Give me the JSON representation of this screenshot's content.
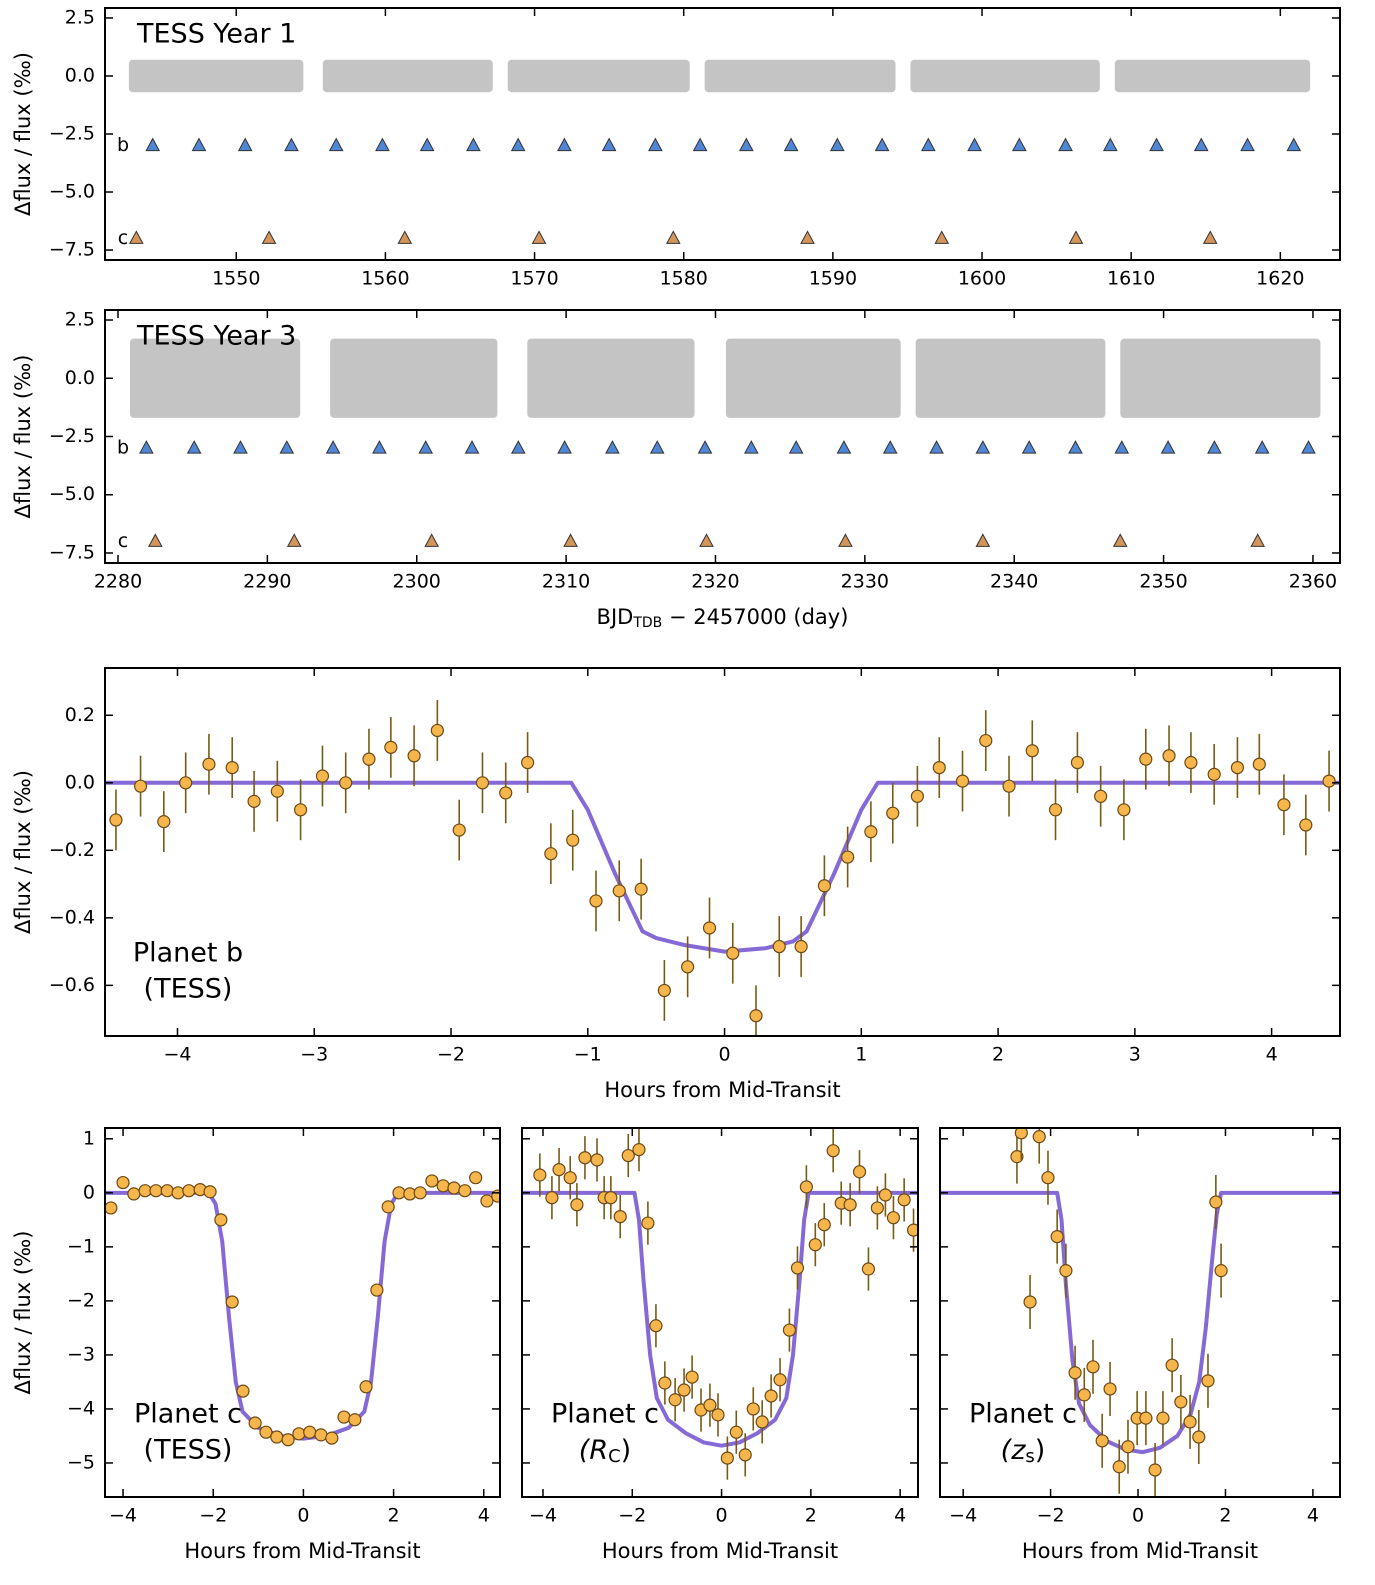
{
  "chart_data": [
    {
      "type": "scatter",
      "title": "TESS Year 1",
      "ylabel": "Δflux / flux (‰)",
      "xlim": [
        1541.2,
        1624.0
      ],
      "ylim": [
        -7.93,
        2.93
      ],
      "xticks": [
        1550,
        1560,
        1570,
        1580,
        1590,
        1600,
        1610,
        1620
      ],
      "yticks": [
        2.5,
        {
          "value": 0,
          "label": "0.0"
        },
        {
          "value": -2.5,
          "label": "−2.5"
        },
        {
          "value": -5,
          "label": "−5.0"
        },
        {
          "value": -7.5,
          "label": "−7.5"
        }
      ],
      "segments": [
        [
          1542.8,
          1554.5
        ],
        [
          1555.8,
          1567.2
        ],
        [
          1568.2,
          1580.4
        ],
        [
          1581.4,
          1594.2
        ],
        [
          1595.2,
          1607.9
        ],
        [
          1608.9,
          1622.0
        ]
      ],
      "band": [
        -0.7,
        0.7
      ],
      "band_color": "#b0b0b0",
      "series": [
        {
          "name": "b",
          "color": "#4f86d6",
          "y": -3.0,
          "x": [
            1544.4,
            1547.5,
            1550.6,
            1553.7,
            1556.7,
            1559.8,
            1562.8,
            1565.9,
            1568.9,
            1572.0,
            1575.0,
            1578.1,
            1581.1,
            1584.2,
            1587.2,
            1590.3,
            1593.3,
            1596.4,
            1599.5,
            1602.5,
            1605.6,
            1608.6,
            1611.7,
            1614.7,
            1617.8,
            1620.9
          ]
        },
        {
          "name": "c",
          "color": "#d3955a",
          "y": -7.0,
          "x": [
            1543.3,
            1552.2,
            1561.3,
            1570.3,
            1579.3,
            1588.3,
            1597.3,
            1606.3,
            1615.3
          ]
        }
      ]
    },
    {
      "type": "scatter",
      "title": "TESS Year 3",
      "ylabel": "Δflux / flux (‰)",
      "xlabel": "BJD",
      "xlabel_sub": "TDB",
      "xlabel_rest": " − 2457000 (day)",
      "xlim": [
        2279.13,
        2361.81
      ],
      "ylim": [
        -7.93,
        2.93
      ],
      "xticks": [
        2280,
        2290,
        2300,
        2310,
        2320,
        2330,
        2340,
        2350,
        2360
      ],
      "yticks": [
        2.5,
        {
          "value": 0,
          "label": "0.0"
        },
        {
          "value": -2.5,
          "label": "−2.5"
        },
        {
          "value": -5,
          "label": "−5.0"
        },
        {
          "value": -7.5,
          "label": "−7.5"
        }
      ],
      "segments": [
        [
          2280.8,
          2292.2
        ],
        [
          2294.2,
          2305.4
        ],
        [
          2307.4,
          2318.6
        ],
        [
          2320.7,
          2332.4
        ],
        [
          2333.4,
          2346.1
        ],
        [
          2347.1,
          2360.5
        ]
      ],
      "band": [
        -1.7,
        1.7
      ],
      "band_color": "#b0b0b0",
      "series": [
        {
          "name": "b",
          "color": "#4f86d6",
          "y": -3.0,
          "x": [
            2281.9,
            2285.1,
            2288.2,
            2291.3,
            2294.4,
            2297.5,
            2300.6,
            2303.7,
            2306.8,
            2309.9,
            2313.1,
            2316.1,
            2319.3,
            2322.4,
            2325.4,
            2328.6,
            2331.7,
            2334.8,
            2337.9,
            2341.0,
            2344.1,
            2347.2,
            2350.3,
            2353.4,
            2356.6,
            2359.7
          ]
        },
        {
          "name": "c",
          "color": "#d3955a",
          "y": -7.0,
          "x": [
            2282.5,
            2291.8,
            2301.0,
            2310.3,
            2319.4,
            2328.7,
            2337.9,
            2347.1,
            2356.3
          ]
        }
      ]
    },
    {
      "type": "errorbar",
      "ylabel": "Δflux / flux (‰)",
      "xlabel": "Hours from Mid-Transit",
      "annotation": [
        "Planet b",
        "(TESS)"
      ],
      "xlim": [
        -4.53,
        4.5
      ],
      "ylim": [
        -0.75,
        0.34
      ],
      "xticks": [
        {
          "value": -4,
          "label": "−4"
        },
        {
          "value": -3,
          "label": "−3"
        },
        {
          "value": -2,
          "label": "−2"
        },
        {
          "value": -1,
          "label": "−1"
        },
        0,
        1,
        2,
        3,
        4
      ],
      "yticks": [
        0.2,
        {
          "value": 0,
          "label": "0.0"
        },
        {
          "value": -0.2,
          "label": "−0.2"
        },
        {
          "value": -0.4,
          "label": "−0.4"
        },
        {
          "value": -0.6,
          "label": "−0.6"
        }
      ],
      "color": "#f6b64c",
      "yerr": 0.09,
      "x": [
        -4.45,
        -4.27,
        -4.1,
        -3.94,
        -3.77,
        -3.6,
        -3.44,
        -3.27,
        -3.1,
        -2.94,
        -2.77,
        -2.6,
        -2.44,
        -2.27,
        -2.1,
        -1.94,
        -1.77,
        -1.6,
        -1.44,
        -1.27,
        -1.11,
        -0.94,
        -0.77,
        -0.61,
        -0.44,
        -0.27,
        -0.11,
        0.06,
        0.23,
        0.4,
        0.56,
        0.73,
        0.9,
        1.07,
        1.23,
        1.41,
        1.57,
        1.74,
        1.91,
        2.08,
        2.25,
        2.42,
        2.58,
        2.75,
        2.92,
        3.08,
        3.25,
        3.41,
        3.58,
        3.75,
        3.91,
        4.09,
        4.25,
        4.42
      ],
      "values": [
        -0.11,
        -0.01,
        -0.115,
        0.0,
        0.055,
        0.045,
        -0.055,
        -0.025,
        -0.08,
        0.02,
        0.0,
        0.07,
        0.105,
        0.08,
        0.155,
        -0.14,
        0.0,
        -0.03,
        0.06,
        -0.21,
        -0.17,
        -0.35,
        -0.32,
        -0.315,
        -0.615,
        -0.545,
        -0.43,
        -0.505,
        -0.69,
        -0.485,
        -0.485,
        -0.305,
        -0.22,
        -0.145,
        -0.09,
        -0.04,
        0.045,
        0.005,
        0.125,
        -0.01,
        0.095,
        -0.08,
        0.06,
        -0.04,
        -0.08,
        0.07,
        0.08,
        0.06,
        0.025,
        0.045,
        0.055,
        -0.065,
        -0.125,
        0.005
      ],
      "model": {
        "color": "#8569d6",
        "x": [
          -4.53,
          -1.12,
          -1.0,
          -0.8,
          -0.6,
          -0.5,
          -0.3,
          0,
          0.3,
          0.5,
          0.6,
          0.8,
          1.0,
          1.12,
          4.5
        ],
        "values": [
          0,
          0,
          -0.08,
          -0.27,
          -0.44,
          -0.46,
          -0.48,
          -0.5,
          -0.49,
          -0.47,
          -0.44,
          -0.27,
          -0.08,
          0,
          0
        ]
      }
    },
    {
      "type": "errorbar",
      "ylabel": "Δflux / flux (‰)",
      "xlabel": "Hours from Mid-Transit",
      "annotation": [
        "Planet c",
        "(TESS)"
      ],
      "xlim": [
        -4.4,
        4.36
      ],
      "ylim": [
        -5.63,
        1.2
      ],
      "xticks": [
        {
          "value": -4,
          "label": "−4"
        },
        {
          "value": -2,
          "label": "−2"
        },
        0,
        2,
        4
      ],
      "yticks": [
        1,
        0,
        {
          "value": -1,
          "label": "−1"
        },
        {
          "value": -2,
          "label": "−2"
        },
        {
          "value": -3,
          "label": "−3"
        },
        {
          "value": -4,
          "label": "−4"
        },
        {
          "value": -5,
          "label": "−5"
        }
      ],
      "color": "#f6b64c",
      "yerr": 0.1,
      "x": [
        -4.27,
        -4.0,
        -3.76,
        -3.51,
        -3.27,
        -3.02,
        -2.78,
        -2.54,
        -2.29,
        -2.07,
        -1.83,
        -1.58,
        -1.34,
        -1.07,
        -0.83,
        -0.59,
        -0.34,
        -0.1,
        0.14,
        0.39,
        0.63,
        0.9,
        1.14,
        1.39,
        1.63,
        1.88,
        2.12,
        2.36,
        2.59,
        2.85,
        3.1,
        3.34,
        3.58,
        3.82,
        4.07,
        4.31
      ],
      "values": [
        -0.28,
        0.19,
        -0.02,
        0.04,
        0.04,
        0.04,
        0.0,
        0.04,
        0.06,
        0.02,
        -0.5,
        -2.02,
        -3.67,
        -4.26,
        -4.43,
        -4.52,
        -4.57,
        -4.46,
        -4.43,
        -4.48,
        -4.54,
        -4.15,
        -4.2,
        -3.59,
        -1.8,
        -0.26,
        0.0,
        -0.02,
        0.0,
        0.22,
        0.13,
        0.09,
        0.04,
        0.28,
        -0.15,
        -0.06
      ],
      "model": {
        "color": "#8569d6",
        "x": [
          -4.4,
          -2.1,
          -1.95,
          -1.8,
          -1.65,
          -1.5,
          -1.35,
          -1.0,
          -0.5,
          0,
          0.5,
          1.0,
          1.35,
          1.5,
          1.65,
          1.8,
          1.95,
          2.1,
          4.36
        ],
        "values": [
          0,
          0,
          -0.2,
          -0.9,
          -2.3,
          -3.5,
          -4.05,
          -4.35,
          -4.5,
          -4.55,
          -4.5,
          -4.35,
          -4.05,
          -3.5,
          -2.3,
          -0.9,
          -0.2,
          0,
          0
        ]
      }
    },
    {
      "type": "errorbar",
      "xlabel": "Hours from Mid-Transit",
      "annotation": [
        "Planet c"
      ],
      "band_symbol": "(R",
      "band_sub": "C",
      "band_close": ")",
      "xlim": [
        -4.47,
        4.4
      ],
      "ylim": [
        -5.63,
        1.2
      ],
      "show_ytick_labels": false,
      "xticks": [
        {
          "value": -4,
          "label": "−4"
        },
        {
          "value": -2,
          "label": "−2"
        },
        0,
        2,
        4
      ],
      "yticks": [
        1,
        0,
        -1,
        -2,
        -3,
        -4,
        -5
      ],
      "color": "#f6b64c",
      "yerr": 0.4,
      "x": [
        -4.07,
        -3.8,
        -3.64,
        -3.39,
        -3.24,
        -3.06,
        -2.79,
        -2.63,
        -2.48,
        -2.27,
        -2.09,
        -1.85,
        -1.65,
        -1.47,
        -1.27,
        -1.04,
        -0.84,
        -0.66,
        -0.46,
        -0.26,
        -0.08,
        0.13,
        0.33,
        0.53,
        0.71,
        0.91,
        1.11,
        1.31,
        1.52,
        1.7,
        1.9,
        2.1,
        2.3,
        2.5,
        2.68,
        2.88,
        3.09,
        3.29,
        3.49,
        3.67,
        3.85,
        4.09,
        4.3
      ],
      "values": [
        0.33,
        -0.09,
        0.43,
        0.28,
        -0.22,
        0.65,
        0.61,
        -0.09,
        -0.09,
        -0.44,
        0.69,
        0.8,
        -0.56,
        -2.46,
        -3.52,
        -3.83,
        -3.65,
        -3.41,
        -4.02,
        -3.93,
        -4.11,
        -4.91,
        -4.43,
        -4.85,
        -4.0,
        -4.24,
        -3.76,
        -3.46,
        -2.54,
        -1.39,
        0.11,
        -0.96,
        -0.59,
        0.78,
        -0.19,
        -0.22,
        0.39,
        -1.41,
        -0.28,
        -0.04,
        -0.46,
        -0.13,
        -0.69
      ],
      "model": {
        "color": "#8569d6",
        "x": [
          -4.47,
          -1.95,
          -1.85,
          -1.75,
          -1.6,
          -1.45,
          -1.2,
          -0.8,
          -0.4,
          0,
          0.4,
          0.8,
          1.2,
          1.45,
          1.6,
          1.75,
          1.85,
          1.95,
          4.4
        ],
        "values": [
          0,
          0,
          -0.5,
          -1.6,
          -3.0,
          -3.8,
          -4.2,
          -4.45,
          -4.62,
          -4.68,
          -4.62,
          -4.45,
          -4.2,
          -3.8,
          -3.0,
          -1.6,
          -0.5,
          0,
          0
        ]
      }
    },
    {
      "type": "errorbar",
      "xlabel": "Hours from Mid-Transit",
      "annotation": [
        "Planet c"
      ],
      "band_symbol": "(z",
      "band_sub": "s",
      "band_close": ")",
      "xlim": [
        -4.53,
        4.62
      ],
      "ylim": [
        -5.63,
        1.2
      ],
      "show_ytick_labels": false,
      "xticks": [
        {
          "value": -4,
          "label": "−4"
        },
        {
          "value": -2,
          "label": "−2"
        },
        0,
        2,
        4
      ],
      "yticks": [
        1,
        0,
        -1,
        -2,
        -3,
        -4,
        -5
      ],
      "color": "#f6b64c",
      "yerr": 0.5,
      "x": [
        -2.77,
        -2.67,
        -2.47,
        -2.26,
        -2.06,
        -1.85,
        -1.65,
        -1.44,
        -1.23,
        -1.03,
        -0.82,
        -0.64,
        -0.43,
        -0.23,
        -0.02,
        0.18,
        0.39,
        0.57,
        0.78,
        0.98,
        1.19,
        1.39,
        1.6,
        1.78,
        1.9
      ],
      "values": [
        0.67,
        1.11,
        -2.02,
        1.04,
        0.28,
        -0.81,
        -1.44,
        -3.33,
        -3.74,
        -3.22,
        -4.59,
        -3.63,
        -5.07,
        -4.7,
        -4.17,
        -4.17,
        -5.13,
        -4.17,
        -3.19,
        -3.87,
        -4.24,
        -4.52,
        -3.48,
        -0.17,
        -1.44
      ],
      "model": {
        "color": "#8569d6",
        "x": [
          -4.53,
          -1.85,
          -1.75,
          -1.65,
          -1.5,
          -1.35,
          -1.1,
          -0.7,
          -0.3,
          0.1,
          0.5,
          0.9,
          1.2,
          1.4,
          1.55,
          1.7,
          1.8,
          1.9,
          4.62
        ],
        "values": [
          0,
          0,
          -0.5,
          -1.7,
          -3.1,
          -3.9,
          -4.3,
          -4.6,
          -4.75,
          -4.8,
          -4.72,
          -4.5,
          -4.1,
          -3.5,
          -2.5,
          -1.2,
          -0.4,
          0,
          0
        ]
      }
    }
  ]
}
